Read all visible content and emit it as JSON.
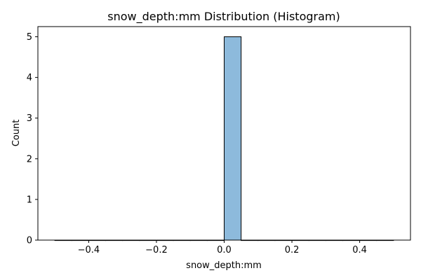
{
  "chart_data": {
    "type": "bar",
    "title": "snow_depth:mm Distribution (Histogram)",
    "xlabel": "snow_depth:mm",
    "ylabel": "Count",
    "xlim": [
      -0.55,
      0.55
    ],
    "ylim": [
      0,
      5.25
    ],
    "xticks": [
      -0.4,
      -0.2,
      0.0,
      0.2,
      0.4
    ],
    "xtick_labels": [
      "−0.4",
      "−0.2",
      "0.0",
      "0.2",
      "0.4"
    ],
    "yticks": [
      0,
      1,
      2,
      3,
      4,
      5
    ],
    "ytick_labels": [
      "0",
      "1",
      "2",
      "3",
      "4",
      "5"
    ],
    "bins": [
      {
        "x0": -0.5,
        "x1": -0.45,
        "count": 0
      },
      {
        "x0": -0.45,
        "x1": -0.4,
        "count": 0
      },
      {
        "x0": -0.4,
        "x1": -0.35,
        "count": 0
      },
      {
        "x0": -0.35,
        "x1": -0.3,
        "count": 0
      },
      {
        "x0": -0.3,
        "x1": -0.25,
        "count": 0
      },
      {
        "x0": -0.25,
        "x1": -0.2,
        "count": 0
      },
      {
        "x0": -0.2,
        "x1": -0.15,
        "count": 0
      },
      {
        "x0": -0.15,
        "x1": -0.1,
        "count": 0
      },
      {
        "x0": -0.1,
        "x1": -0.05,
        "count": 0
      },
      {
        "x0": -0.05,
        "x1": 0.0,
        "count": 0
      },
      {
        "x0": 0.0,
        "x1": 0.05,
        "count": 5
      },
      {
        "x0": 0.05,
        "x1": 0.1,
        "count": 0
      },
      {
        "x0": 0.1,
        "x1": 0.15,
        "count": 0
      },
      {
        "x0": 0.15,
        "x1": 0.2,
        "count": 0
      },
      {
        "x0": 0.2,
        "x1": 0.25,
        "count": 0
      },
      {
        "x0": 0.25,
        "x1": 0.3,
        "count": 0
      },
      {
        "x0": 0.3,
        "x1": 0.35,
        "count": 0
      },
      {
        "x0": 0.35,
        "x1": 0.4,
        "count": 0
      },
      {
        "x0": 0.4,
        "x1": 0.45,
        "count": 0
      },
      {
        "x0": 0.45,
        "x1": 0.5,
        "count": 0
      }
    ],
    "grid": false,
    "colors": {
      "bar_fill": "#8dbadc",
      "bar_edge": "#000000",
      "axis": "#000000"
    }
  }
}
